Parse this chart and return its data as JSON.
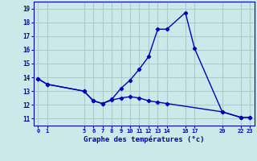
{
  "title": "Graphe des températures (°c)",
  "background_color": "#cce8e8",
  "line_color": "#0000bb",
  "grid_color": "#aacccc",
  "line1_x": [
    0,
    1,
    5,
    6,
    7,
    8,
    9,
    10,
    11,
    12,
    13,
    14,
    16,
    17,
    20,
    22,
    23
  ],
  "line1_y": [
    13.9,
    13.5,
    13.0,
    12.3,
    12.1,
    12.4,
    13.2,
    13.8,
    14.6,
    15.5,
    17.5,
    17.5,
    18.7,
    16.1,
    11.5,
    11.1,
    11.1
  ],
  "line2_x": [
    0,
    1,
    5,
    6,
    7,
    8,
    9,
    10,
    11,
    12,
    13,
    14,
    20,
    22,
    23
  ],
  "line2_y": [
    13.9,
    13.5,
    13.0,
    12.3,
    12.1,
    12.35,
    12.5,
    12.6,
    12.5,
    12.3,
    12.2,
    12.1,
    11.5,
    11.1,
    11.1
  ],
  "xticks": [
    0,
    1,
    5,
    6,
    7,
    8,
    9,
    10,
    11,
    12,
    13,
    14,
    16,
    17,
    20,
    22,
    23
  ],
  "xtick_labels": [
    "0",
    "1",
    "5",
    "6",
    "7",
    "8",
    "9",
    "10",
    "11",
    "12",
    "13",
    "14",
    "16",
    "17",
    "20",
    "22",
    "23"
  ],
  "yticks": [
    11,
    12,
    13,
    14,
    15,
    16,
    17,
    18,
    19
  ],
  "ylim": [
    10.5,
    19.5
  ],
  "xlim": [
    -0.5,
    23.5
  ]
}
